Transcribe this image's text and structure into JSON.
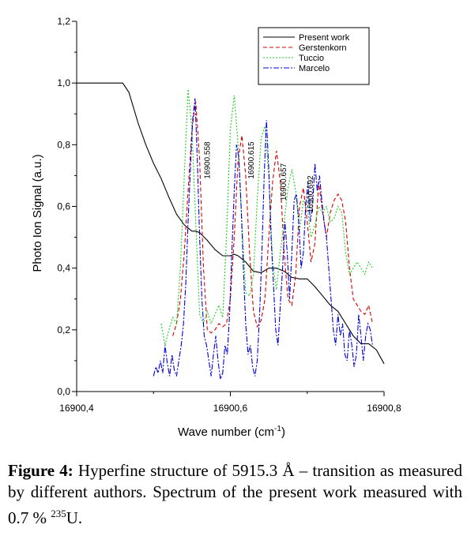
{
  "chart_data": {
    "type": "line",
    "xlabel_main": "Wave number (cm",
    "xlabel_sup": "-1",
    "xlabel_tail": ")",
    "ylabel": "Photo Ion Signal (a.u.)",
    "xlim": [
      16900.4,
      16900.8
    ],
    "ylim": [
      0.0,
      1.2
    ],
    "x_ticks": [
      {
        "value": 16900.4,
        "label": "16900,4"
      },
      {
        "value": 16900.6,
        "label": "16900,6"
      },
      {
        "value": 16900.8,
        "label": "16900,8"
      }
    ],
    "y_ticks": [
      {
        "value": 0.0,
        "label": "0,0"
      },
      {
        "value": 0.2,
        "label": "0,2"
      },
      {
        "value": 0.4,
        "label": "0,4"
      },
      {
        "value": 0.6,
        "label": "0,6"
      },
      {
        "value": 0.8,
        "label": "0,8"
      },
      {
        "value": 1.0,
        "label": "1,0"
      },
      {
        "value": 1.2,
        "label": "1,2"
      }
    ],
    "legend_position": "top-right",
    "grid": false,
    "annotations": [
      {
        "text": "16900.558",
        "x": 16900.558,
        "y": 0.81
      },
      {
        "text": "16900.615",
        "x": 16900.615,
        "y": 0.81
      },
      {
        "text": "16900.657",
        "x": 16900.657,
        "y": 0.74
      },
      {
        "text": "16900.692",
        "x": 16900.692,
        "y": 0.7
      }
    ],
    "series": [
      {
        "name": "Present work",
        "color": "#000000",
        "dash": "",
        "x": [
          16900.4,
          16900.46,
          16900.468,
          16900.48,
          16900.49,
          16900.5,
          16900.51,
          16900.52,
          16900.53,
          16900.54,
          16900.55,
          16900.555,
          16900.56,
          16900.57,
          16900.58,
          16900.59,
          16900.6,
          16900.605,
          16900.61,
          16900.62,
          16900.63,
          16900.64,
          16900.65,
          16900.66,
          16900.67,
          16900.68,
          16900.69,
          16900.7,
          16900.71,
          16900.72,
          16900.73,
          16900.74,
          16900.75,
          16900.76,
          16900.77,
          16900.78,
          16900.79,
          16900.8
        ],
        "y": [
          1.0,
          1.0,
          0.97,
          0.87,
          0.8,
          0.74,
          0.69,
          0.63,
          0.575,
          0.54,
          0.52,
          0.52,
          0.515,
          0.49,
          0.46,
          0.44,
          0.44,
          0.445,
          0.44,
          0.42,
          0.39,
          0.385,
          0.4,
          0.4,
          0.39,
          0.37,
          0.365,
          0.365,
          0.34,
          0.31,
          0.28,
          0.26,
          0.22,
          0.18,
          0.155,
          0.155,
          0.135,
          0.09
        ]
      },
      {
        "name": "Gerstenkorn",
        "color": "#dd0000",
        "dash": "5,3",
        "x": [
          16900.525,
          16900.53,
          16900.535,
          16900.54,
          16900.545,
          16900.55,
          16900.555,
          16900.56,
          16900.565,
          16900.57,
          16900.575,
          16900.58,
          16900.585,
          16900.59,
          16900.595,
          16900.6,
          16900.605,
          16900.61,
          16900.615,
          16900.62,
          16900.625,
          16900.63,
          16900.635,
          16900.64,
          16900.645,
          16900.65,
          16900.655,
          16900.66,
          16900.665,
          16900.67,
          16900.675,
          16900.68,
          16900.685,
          16900.69,
          16900.695,
          16900.7,
          16900.705,
          16900.71,
          16900.715,
          16900.72,
          16900.725,
          16900.73,
          16900.735,
          16900.74,
          16900.745,
          16900.75,
          16900.755,
          16900.76,
          16900.765,
          16900.77,
          16900.775,
          16900.78,
          16900.785
        ],
        "y": [
          0.18,
          0.22,
          0.3,
          0.45,
          0.65,
          0.85,
          0.94,
          0.75,
          0.4,
          0.2,
          0.19,
          0.2,
          0.22,
          0.21,
          0.22,
          0.3,
          0.5,
          0.75,
          0.83,
          0.7,
          0.45,
          0.26,
          0.21,
          0.23,
          0.3,
          0.5,
          0.68,
          0.78,
          0.68,
          0.45,
          0.3,
          0.28,
          0.38,
          0.6,
          0.66,
          0.55,
          0.42,
          0.48,
          0.68,
          0.58,
          0.5,
          0.58,
          0.62,
          0.64,
          0.62,
          0.55,
          0.4,
          0.3,
          0.28,
          0.26,
          0.25,
          0.28,
          0.22
        ]
      },
      {
        "name": "Tuccio",
        "color": "#22cc22",
        "dash": "2,2",
        "x": [
          16900.51,
          16900.515,
          16900.52,
          16900.525,
          16900.53,
          16900.535,
          16900.54,
          16900.545,
          16900.55,
          16900.555,
          16900.56,
          16900.565,
          16900.57,
          16900.575,
          16900.58,
          16900.585,
          16900.59,
          16900.595,
          16900.6,
          16900.605,
          16900.61,
          16900.615,
          16900.62,
          16900.625,
          16900.63,
          16900.635,
          16900.64,
          16900.645,
          16900.65,
          16900.655,
          16900.66,
          16900.665,
          16900.67,
          16900.675,
          16900.68,
          16900.685,
          16900.69,
          16900.695,
          16900.7,
          16900.705,
          16900.71,
          16900.715,
          16900.72,
          16900.725,
          16900.73,
          16900.735,
          16900.74,
          16900.745,
          16900.75,
          16900.755,
          16900.76,
          16900.765,
          16900.77,
          16900.775,
          16900.78,
          16900.785
        ],
        "y": [
          0.22,
          0.15,
          0.2,
          0.24,
          0.22,
          0.4,
          0.7,
          0.98,
          0.85,
          0.55,
          0.25,
          0.22,
          0.26,
          0.22,
          0.25,
          0.28,
          0.24,
          0.5,
          0.85,
          0.96,
          0.8,
          0.55,
          0.32,
          0.31,
          0.38,
          0.62,
          0.82,
          0.86,
          0.7,
          0.42,
          0.33,
          0.45,
          0.55,
          0.66,
          0.72,
          0.65,
          0.52,
          0.62,
          0.6,
          0.5,
          0.54,
          0.6,
          0.58,
          0.6,
          0.55,
          0.56,
          0.6,
          0.58,
          0.45,
          0.38,
          0.4,
          0.42,
          0.4,
          0.38,
          0.42,
          0.4
        ]
      },
      {
        "name": "Marcelo",
        "color": "#0000dd",
        "dash": "7,2,2,2",
        "x": [
          16900.5,
          16900.503,
          16900.506,
          16900.509,
          16900.512,
          16900.515,
          16900.518,
          16900.521,
          16900.524,
          16900.527,
          16900.53,
          16900.533,
          16900.536,
          16900.539,
          16900.542,
          16900.545,
          16900.548,
          16900.551,
          16900.554,
          16900.557,
          16900.56,
          16900.563,
          16900.566,
          16900.569,
          16900.572,
          16900.575,
          16900.578,
          16900.581,
          16900.584,
          16900.587,
          16900.59,
          16900.593,
          16900.596,
          16900.599,
          16900.602,
          16900.605,
          16900.608,
          16900.611,
          16900.614,
          16900.617,
          16900.62,
          16900.623,
          16900.626,
          16900.629,
          16900.632,
          16900.635,
          16900.638,
          16900.641,
          16900.644,
          16900.647,
          16900.65,
          16900.653,
          16900.656,
          16900.659,
          16900.662,
          16900.665,
          16900.668,
          16900.671,
          16900.674,
          16900.677,
          16900.68,
          16900.683,
          16900.686,
          16900.689,
          16900.692,
          16900.695,
          16900.698,
          16900.701,
          16900.704,
          16900.707,
          16900.71,
          16900.713,
          16900.716,
          16900.719,
          16900.722,
          16900.725,
          16900.728,
          16900.731,
          16900.734,
          16900.737,
          16900.74,
          16900.743,
          16900.746,
          16900.749,
          16900.752,
          16900.755,
          16900.758,
          16900.761,
          16900.764,
          16900.767,
          16900.77,
          16900.773,
          16900.776,
          16900.779,
          16900.782,
          16900.785
        ],
        "y": [
          0.05,
          0.08,
          0.06,
          0.1,
          0.06,
          0.15,
          0.09,
          0.05,
          0.12,
          0.07,
          0.05,
          0.1,
          0.15,
          0.22,
          0.35,
          0.55,
          0.72,
          0.88,
          0.95,
          0.75,
          0.5,
          0.3,
          0.18,
          0.15,
          0.1,
          0.05,
          0.12,
          0.18,
          0.1,
          0.04,
          0.06,
          0.15,
          0.12,
          0.25,
          0.45,
          0.65,
          0.8,
          0.76,
          0.6,
          0.4,
          0.22,
          0.12,
          0.15,
          0.08,
          0.05,
          0.1,
          0.25,
          0.45,
          0.7,
          0.88,
          0.72,
          0.5,
          0.35,
          0.2,
          0.15,
          0.28,
          0.4,
          0.55,
          0.45,
          0.3,
          0.45,
          0.62,
          0.64,
          0.55,
          0.4,
          0.45,
          0.6,
          0.68,
          0.55,
          0.6,
          0.74,
          0.65,
          0.7,
          0.62,
          0.55,
          0.5,
          0.4,
          0.3,
          0.2,
          0.15,
          0.25,
          0.18,
          0.22,
          0.12,
          0.1,
          0.2,
          0.15,
          0.08,
          0.12,
          0.25,
          0.18,
          0.1,
          0.18,
          0.22,
          0.2,
          0.15
        ]
      }
    ]
  },
  "caption": {
    "figure_label": "Figure 4:",
    "text_part1": " Hyperfine structure of 5915.3 Å – transition as measured by different authors. Spectrum of the present work measured with 0.7 % ",
    "isotope_sup": "235",
    "text_part2": "U."
  }
}
